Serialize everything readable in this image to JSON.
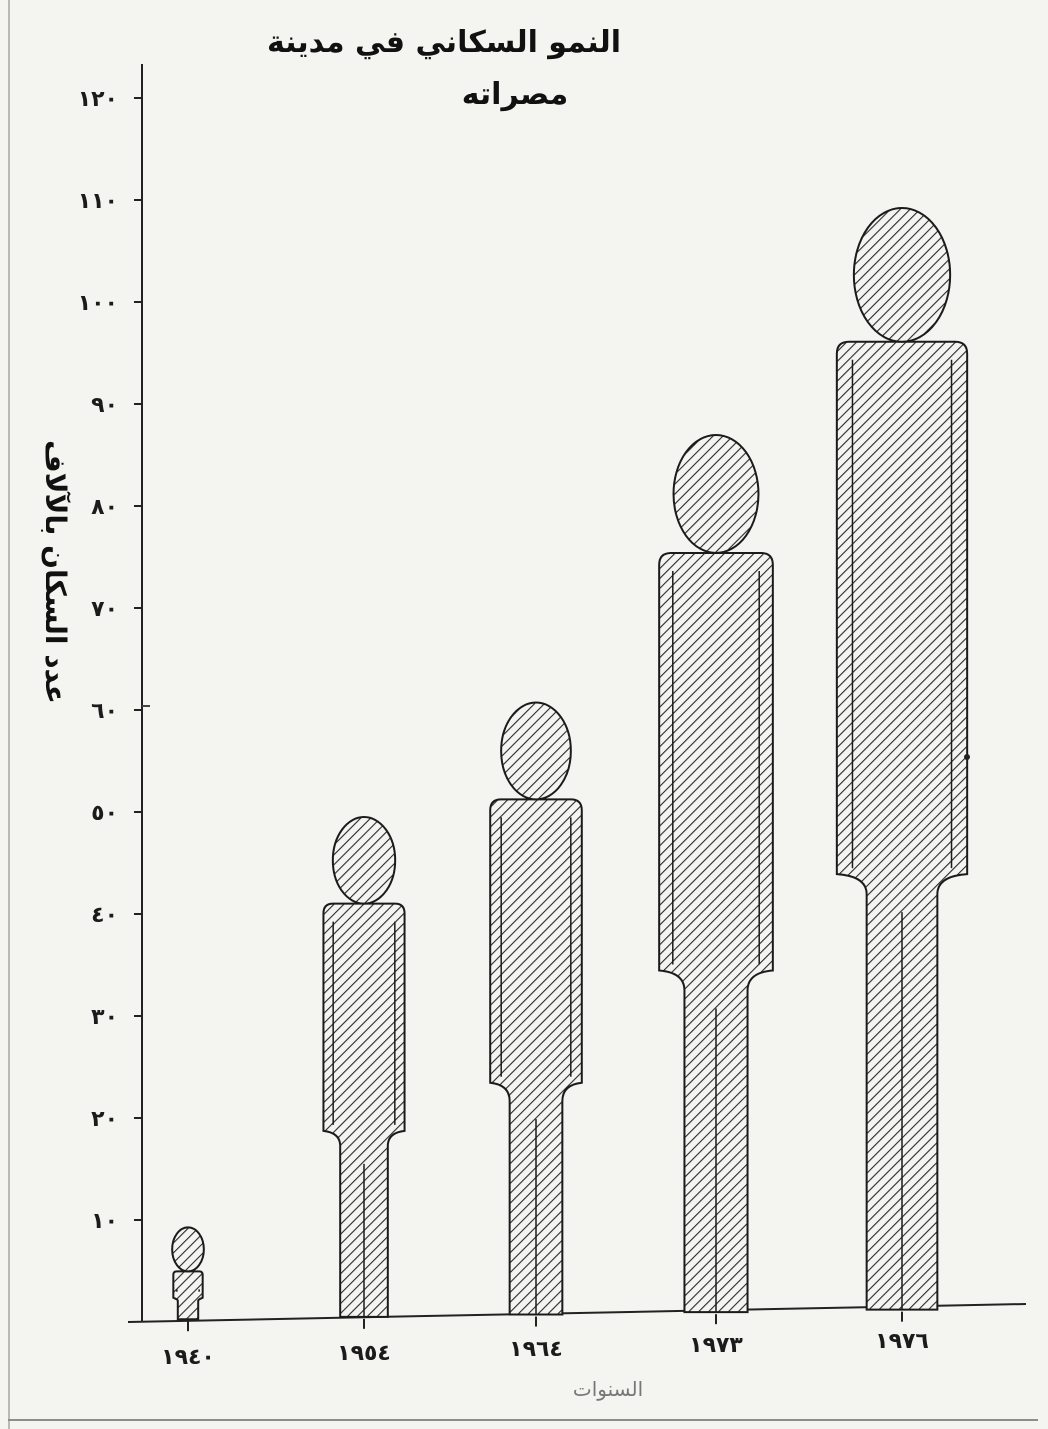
{
  "chart_data": {
    "type": "bar",
    "title": "النمو السكاني في مدينة",
    "subtitle": "مصراته",
    "ylabel": "عدد السكان بالآلاف",
    "xlabel": "السنوات",
    "categories": [
      "١٩٤٠",
      "١٩٥٤",
      "١٩٦٤",
      "١٩٧٣",
      "١٩٧٦"
    ],
    "values": [
      9,
      49,
      60,
      86,
      108
    ],
    "ylim": [
      0,
      120
    ],
    "yticks": [
      10,
      20,
      30,
      40,
      50,
      60,
      70,
      80,
      90,
      100,
      110,
      120
    ],
    "yticklabels": [
      "١٠",
      "٢٠",
      "٣٠",
      "٤٠",
      "٥٠",
      "٦٠",
      "٧٠",
      "٨٠",
      "٩٠",
      "١٠٠",
      "١١٠",
      "١٢٠"
    ],
    "grid": false,
    "legend": "none",
    "mark_style": "human-figure pictogram with diagonal hatching",
    "colors": {
      "ink": "#1b1b1b",
      "hatch": "#2a2a2a",
      "paper": "#f4f4f1"
    }
  }
}
